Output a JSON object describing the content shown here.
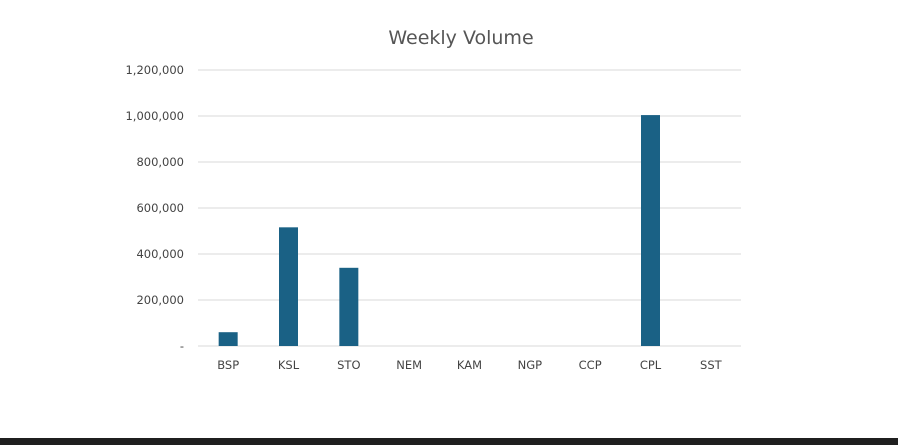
{
  "chart_data": {
    "type": "bar",
    "title": "Weekly Volume",
    "xlabel": "",
    "ylabel": "",
    "categories": [
      "BSP",
      "KSL",
      "STO",
      "NEM",
      "KAM",
      "NGP",
      "CCP",
      "CPL",
      "SST"
    ],
    "values": [
      60000,
      516000,
      340000,
      0,
      0,
      0,
      0,
      1004000,
      0
    ],
    "ylim": [
      0,
      1200000
    ],
    "yticks": [
      0,
      200000,
      400000,
      600000,
      800000,
      1000000,
      1200000
    ],
    "ytick_labels": [
      "-",
      "200,000",
      "400,000",
      "600,000",
      "800,000",
      "1,000,000",
      "1,200,000"
    ],
    "grid": true,
    "legend": "none",
    "bar_color": "#1a6185"
  }
}
